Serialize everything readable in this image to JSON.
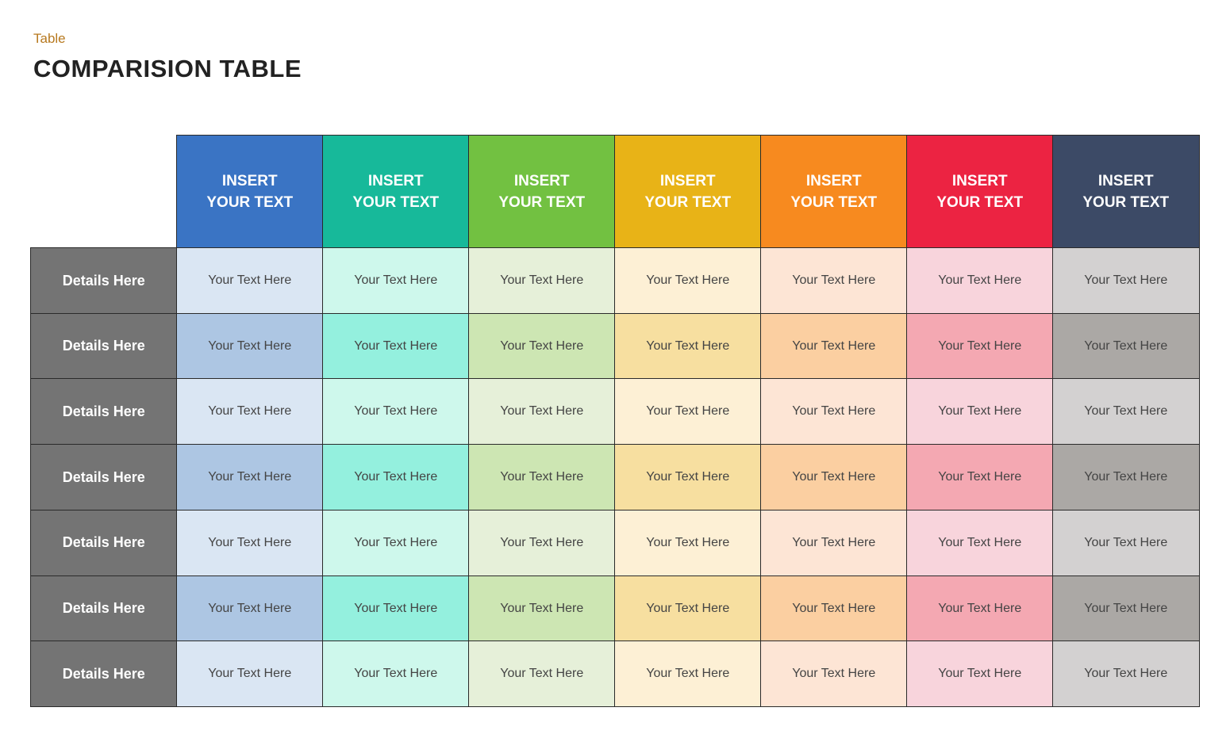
{
  "header": {
    "subtitle": "Table",
    "title": "COMPARISION TABLE"
  },
  "table": {
    "columns": [
      [
        "INSERT",
        "YOUR TEXT"
      ],
      [
        "INSERT",
        "YOUR TEXT"
      ],
      [
        "INSERT",
        "YOUR TEXT"
      ],
      [
        "INSERT",
        "YOUR TEXT"
      ],
      [
        "INSERT",
        "YOUR TEXT"
      ],
      [
        "INSERT",
        "YOUR TEXT"
      ],
      [
        "INSERT",
        "YOUR TEXT"
      ]
    ],
    "rows": [
      {
        "label": "Details Here",
        "cells": [
          "Your Text Here",
          "Your Text Here",
          "Your Text Here",
          "Your Text Here",
          "Your Text Here",
          "Your Text Here",
          "Your Text Here"
        ]
      },
      {
        "label": "Details Here",
        "cells": [
          "Your Text Here",
          "Your Text Here",
          "Your Text Here",
          "Your Text Here",
          "Your Text Here",
          "Your Text Here",
          "Your Text Here"
        ]
      },
      {
        "label": "Details Here",
        "cells": [
          "Your Text Here",
          "Your Text Here",
          "Your Text Here",
          "Your Text Here",
          "Your Text Here",
          "Your Text Here",
          "Your Text Here"
        ]
      },
      {
        "label": "Details Here",
        "cells": [
          "Your Text Here",
          "Your Text Here",
          "Your Text Here",
          "Your Text Here",
          "Your Text Here",
          "Your Text Here",
          "Your Text Here"
        ]
      },
      {
        "label": "Details Here",
        "cells": [
          "Your Text Here",
          "Your Text Here",
          "Your Text Here",
          "Your Text Here",
          "Your Text Here",
          "Your Text Here",
          "Your Text Here"
        ]
      },
      {
        "label": "Details Here",
        "cells": [
          "Your Text Here",
          "Your Text Here",
          "Your Text Here",
          "Your Text Here",
          "Your Text Here",
          "Your Text Here",
          "Your Text Here"
        ]
      },
      {
        "label": "Details Here",
        "cells": [
          "Your Text Here",
          "Your Text Here",
          "Your Text Here",
          "Your Text Here",
          "Your Text Here",
          "Your Text Here",
          "Your Text Here"
        ]
      }
    ]
  }
}
